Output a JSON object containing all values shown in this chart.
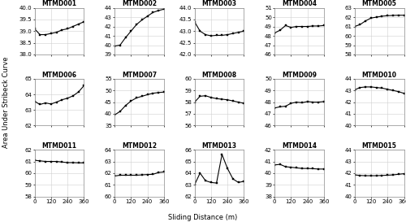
{
  "subplots": [
    {
      "title": "MTMD001",
      "x": [
        0,
        40,
        80,
        120,
        160,
        200,
        240,
        280,
        320,
        360
      ],
      "y": [
        39.1,
        38.85,
        38.85,
        38.9,
        38.95,
        39.05,
        39.1,
        39.2,
        39.3,
        39.4
      ],
      "ylim": [
        38,
        40
      ],
      "yticks": [
        38,
        38.5,
        39,
        39.5,
        40
      ]
    },
    {
      "title": "MTMD002",
      "x": [
        0,
        40,
        80,
        120,
        160,
        200,
        240,
        280,
        320,
        360
      ],
      "y": [
        39.9,
        40.0,
        40.8,
        41.5,
        42.2,
        42.7,
        43.1,
        43.5,
        43.7,
        43.85
      ],
      "ylim": [
        39,
        44
      ],
      "yticks": [
        39,
        40,
        41,
        42,
        43,
        44
      ]
    },
    {
      "title": "MTMD003",
      "x": [
        0,
        40,
        80,
        120,
        160,
        200,
        240,
        280,
        320,
        360
      ],
      "y": [
        43.4,
        43.0,
        42.85,
        42.8,
        42.82,
        42.82,
        42.85,
        42.9,
        42.95,
        43.0
      ],
      "ylim": [
        42,
        44
      ],
      "yticks": [
        42,
        42.5,
        43,
        43.5,
        44
      ]
    },
    {
      "title": "MTMD004",
      "x": [
        0,
        40,
        80,
        120,
        160,
        200,
        240,
        280,
        320,
        360
      ],
      "y": [
        48.3,
        48.6,
        49.1,
        48.9,
        49.0,
        49.0,
        49.0,
        49.05,
        49.05,
        49.1
      ],
      "ylim": [
        46,
        51
      ],
      "yticks": [
        46,
        47,
        48,
        49,
        50,
        51
      ]
    },
    {
      "title": "MTMD005",
      "x": [
        0,
        40,
        80,
        120,
        160,
        200,
        240,
        280,
        320,
        360
      ],
      "y": [
        61.0,
        61.2,
        61.6,
        61.9,
        62.0,
        62.1,
        62.15,
        62.18,
        62.2,
        62.2
      ],
      "ylim": [
        58,
        63
      ],
      "yticks": [
        58,
        59,
        60,
        61,
        62,
        63
      ]
    },
    {
      "title": "MTMD006",
      "x": [
        0,
        40,
        80,
        120,
        160,
        200,
        240,
        280,
        320,
        360
      ],
      "y": [
        63.55,
        63.35,
        63.45,
        63.38,
        63.5,
        63.65,
        63.75,
        63.9,
        64.15,
        64.55
      ],
      "ylim": [
        62,
        65
      ],
      "yticks": [
        62,
        63,
        64,
        65
      ]
    },
    {
      "title": "MTMD007",
      "x": [
        0,
        40,
        80,
        120,
        160,
        200,
        240,
        280,
        320,
        360
      ],
      "y": [
        39.5,
        41.0,
        43.5,
        45.5,
        46.8,
        47.5,
        48.2,
        48.8,
        49.1,
        49.3
      ],
      "ylim": [
        35,
        55
      ],
      "yticks": [
        35,
        40,
        45,
        50,
        55
      ]
    },
    {
      "title": "MTMD008",
      "x": [
        0,
        40,
        80,
        120,
        160,
        200,
        240,
        280,
        320,
        360
      ],
      "y": [
        58.0,
        58.5,
        58.55,
        58.4,
        58.3,
        58.25,
        58.2,
        58.1,
        58.0,
        57.9
      ],
      "ylim": [
        56,
        60
      ],
      "yticks": [
        56,
        57,
        58,
        59,
        60
      ]
    },
    {
      "title": "MTMD009",
      "x": [
        0,
        40,
        80,
        120,
        160,
        200,
        240,
        280,
        320,
        360
      ],
      "y": [
        47.5,
        47.6,
        47.65,
        47.9,
        48.0,
        47.95,
        48.05,
        48.0,
        48.0,
        48.05
      ],
      "ylim": [
        46,
        50
      ],
      "yticks": [
        46,
        47,
        48,
        49,
        50
      ]
    },
    {
      "title": "MTMD010",
      "x": [
        0,
        40,
        80,
        120,
        160,
        200,
        240,
        280,
        320,
        360
      ],
      "y": [
        43.05,
        43.25,
        43.3,
        43.3,
        43.25,
        43.2,
        43.1,
        43.0,
        42.9,
        42.75
      ],
      "ylim": [
        40,
        44
      ],
      "yticks": [
        40,
        41,
        42,
        43,
        44
      ]
    },
    {
      "title": "MTMD011",
      "x": [
        0,
        40,
        80,
        120,
        160,
        200,
        240,
        280,
        320,
        360
      ],
      "y": [
        61.1,
        61.05,
        61.0,
        61.0,
        61.0,
        60.95,
        60.9,
        60.9,
        60.88,
        60.88
      ],
      "ylim": [
        58,
        62
      ],
      "yticks": [
        58,
        59,
        60,
        61,
        62
      ]
    },
    {
      "title": "MTMD012",
      "x": [
        0,
        40,
        80,
        120,
        160,
        200,
        240,
        280,
        320,
        360
      ],
      "y": [
        61.75,
        61.82,
        61.82,
        61.82,
        61.82,
        61.85,
        61.88,
        61.9,
        62.05,
        62.1
      ],
      "ylim": [
        60,
        64
      ],
      "yticks": [
        60,
        61,
        62,
        63,
        64
      ]
    },
    {
      "title": "MTMD013",
      "x": [
        0,
        40,
        80,
        120,
        160,
        200,
        240,
        280,
        320,
        360
      ],
      "y": [
        63.0,
        64.0,
        63.35,
        63.2,
        63.15,
        65.6,
        64.4,
        63.5,
        63.2,
        63.3
      ],
      "ylim": [
        62,
        66
      ],
      "yticks": [
        62,
        63,
        64,
        65,
        66
      ]
    },
    {
      "title": "MTMD014",
      "x": [
        0,
        40,
        80,
        120,
        160,
        200,
        240,
        280,
        320,
        360
      ],
      "y": [
        40.7,
        40.75,
        40.55,
        40.5,
        40.45,
        40.4,
        40.4,
        40.38,
        40.35,
        40.35
      ],
      "ylim": [
        38,
        42
      ],
      "yticks": [
        38,
        39,
        40,
        41,
        42
      ]
    },
    {
      "title": "MTMD015",
      "x": [
        0,
        40,
        80,
        120,
        160,
        200,
        240,
        280,
        320,
        360
      ],
      "y": [
        41.85,
        41.8,
        41.78,
        41.78,
        41.78,
        41.8,
        41.82,
        41.85,
        41.9,
        41.95
      ],
      "ylim": [
        40,
        44
      ],
      "yticks": [
        40,
        41,
        42,
        43,
        44
      ]
    }
  ],
  "xlabel": "Sliding Distance (m)",
  "ylabel": "Area Under Stribeck Curve",
  "xticks": [
    0,
    120,
    240,
    360
  ],
  "line_color": "black",
  "marker": "s",
  "marker_size": 1.8,
  "line_width": 0.8,
  "title_fontsize": 5.5,
  "label_fontsize": 6.0,
  "tick_fontsize": 5.0,
  "grid_color": "#d0d0d0",
  "bg_color": "#ffffff"
}
